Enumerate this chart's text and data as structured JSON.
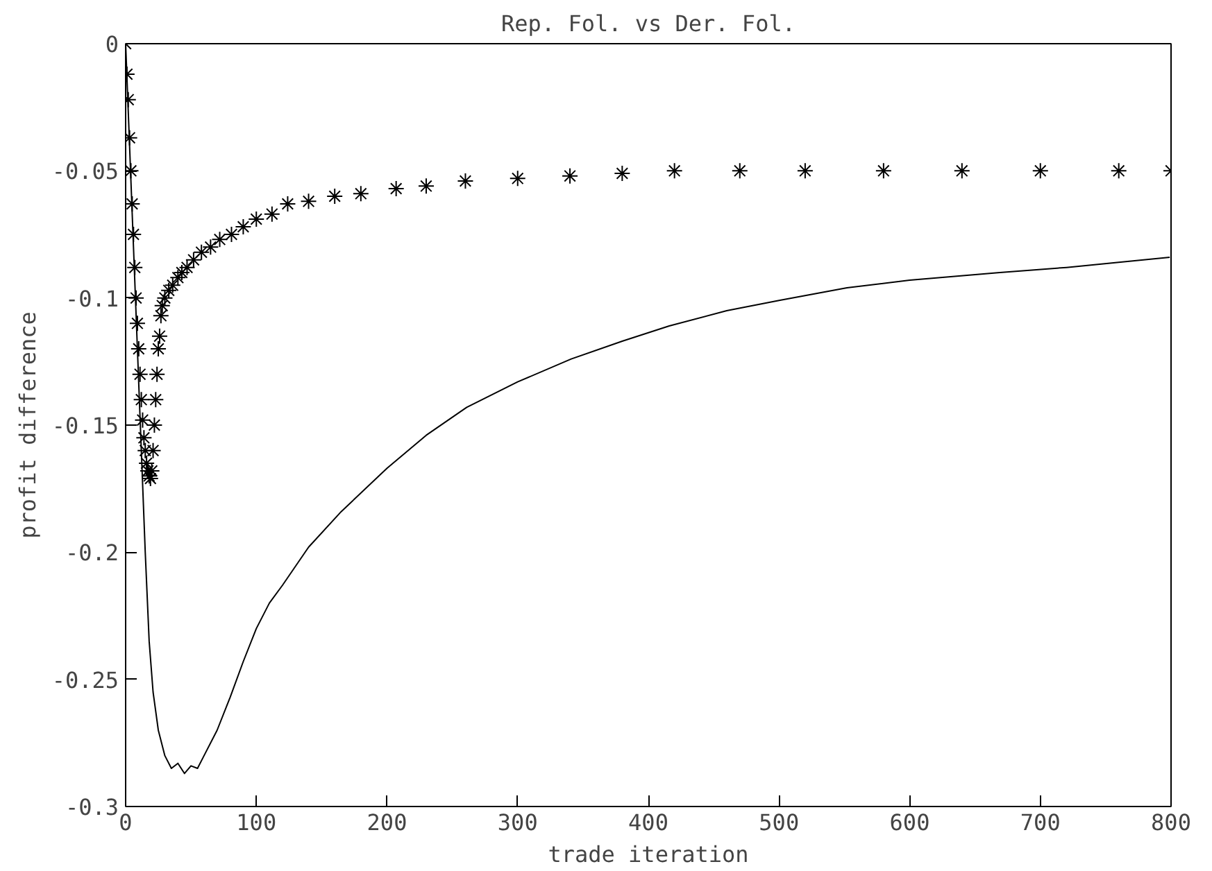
{
  "chart_data": {
    "type": "line",
    "title": "Rep. Fol. vs Der. Fol.",
    "xlabel": "trade iteration",
    "ylabel": "profit difference",
    "xlim": [
      0,
      800
    ],
    "ylim": [
      -0.3,
      0
    ],
    "xticks": [
      0,
      100,
      200,
      300,
      400,
      500,
      600,
      700,
      800
    ],
    "yticks": [
      0,
      -0.05,
      -0.1,
      -0.15,
      -0.2,
      -0.25,
      -0.3
    ],
    "grid": false,
    "series": [
      {
        "color": "#000000",
        "x": [
          0,
          3,
          6,
          9,
          12,
          15,
          18,
          21,
          25,
          30,
          35,
          40,
          45,
          50,
          55,
          60,
          70,
          80,
          90,
          100,
          110,
          120,
          140,
          165,
          200,
          230,
          261,
          300,
          341,
          380,
          416,
          460,
          500,
          552,
          600,
          669,
          720,
          760,
          799
        ],
        "values": [
          0,
          -0.04,
          -0.08,
          -0.12,
          -0.16,
          -0.2,
          -0.235,
          -0.255,
          -0.27,
          -0.28,
          -0.285,
          -0.283,
          -0.287,
          -0.284,
          -0.285,
          -0.28,
          -0.27,
          -0.257,
          -0.243,
          -0.23,
          -0.22,
          -0.213,
          -0.198,
          -0.184,
          -0.167,
          -0.154,
          -0.143,
          -0.133,
          -0.124,
          -0.117,
          -0.111,
          -0.105,
          -0.101,
          -0.096,
          -0.093,
          -0.09,
          -0.088,
          -0.086,
          -0.084
        ]
      },
      {
        "type": "scatter",
        "color": "#000000",
        "marker": "cross",
        "x": [
          0,
          1,
          2,
          3,
          4,
          5,
          6,
          7,
          8,
          9,
          10,
          11,
          12,
          13,
          14,
          15,
          16,
          17,
          18,
          19,
          20,
          21,
          22,
          23,
          24,
          25,
          26,
          27,
          28,
          30,
          33,
          36,
          40,
          43,
          47,
          52,
          58,
          65,
          72,
          81,
          90,
          100,
          112,
          124,
          140,
          160,
          180,
          207,
          230,
          260,
          300,
          340,
          380,
          420,
          470,
          520,
          580,
          640,
          700,
          760,
          800
        ],
        "values": [
          0,
          -0.012,
          -0.022,
          -0.037,
          -0.05,
          -0.063,
          -0.075,
          -0.088,
          -0.1,
          -0.11,
          -0.12,
          -0.13,
          -0.14,
          -0.148,
          -0.155,
          -0.16,
          -0.165,
          -0.168,
          -0.17,
          -0.171,
          -0.168,
          -0.16,
          -0.15,
          -0.14,
          -0.13,
          -0.12,
          -0.115,
          -0.107,
          -0.103,
          -0.1,
          -0.097,
          -0.095,
          -0.092,
          -0.09,
          -0.088,
          -0.085,
          -0.082,
          -0.08,
          -0.077,
          -0.075,
          -0.072,
          -0.069,
          -0.067,
          -0.063,
          -0.062,
          -0.06,
          -0.059,
          -0.057,
          -0.056,
          -0.054,
          -0.053,
          -0.052,
          -0.051,
          -0.05,
          -0.05,
          -0.05,
          -0.05,
          -0.05,
          -0.05,
          -0.05,
          -0.05
        ]
      }
    ]
  }
}
